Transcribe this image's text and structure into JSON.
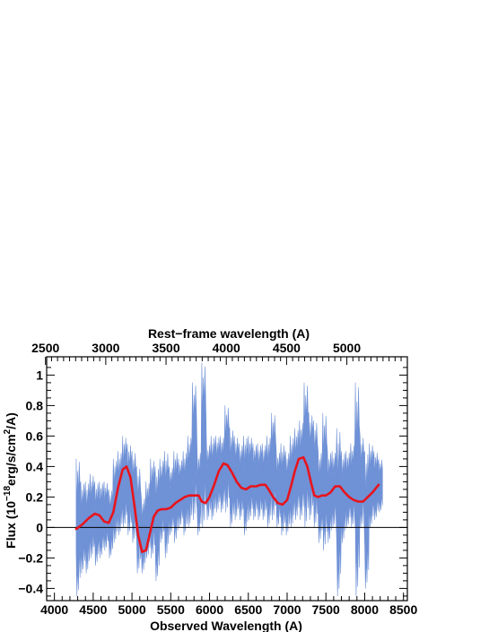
{
  "chart_data": {
    "type": "line",
    "title": "",
    "xlabel": "Observed Wavelength (A)",
    "ylabel_prefix": "Flux (10",
    "ylabel_exp1": "−18",
    "ylabel_mid": "erg/s/cm",
    "ylabel_exp2": "2",
    "ylabel_suffix": "/A)",
    "top_xlabel": "Rest−frame wavelength (A)",
    "xlim": [
      3900,
      8550
    ],
    "ylim": [
      -0.48,
      1.12
    ],
    "x_ticks": [
      4000,
      4500,
      5000,
      5500,
      6000,
      6500,
      7000,
      7500,
      8000,
      8500
    ],
    "y_ticks": [
      -0.4,
      -0.2,
      0,
      0.2,
      0.4,
      0.6,
      0.8,
      1
    ],
    "y_tick_labels": [
      "−0.4",
      "−0.2",
      "0",
      "0.2",
      "0.4",
      "0.6",
      "0.8",
      "1"
    ],
    "top_ticks": {
      "observed_per_rest": 1.554,
      "values": [
        2500,
        3000,
        3500,
        4000,
        4500,
        5000
      ]
    },
    "zero_line": 0,
    "grid": false,
    "colors": {
      "spectrum_band": "#6f91d6",
      "smoothed": "#e8141c",
      "axes": "#000000"
    },
    "series": [
      {
        "role": "spectrum_band",
        "x": [
          4280,
          4340,
          4400,
          4460,
          4520,
          4580,
          4640,
          4700,
          4760,
          4820,
          4880,
          4940,
          5000,
          5060,
          5120,
          5180,
          5240,
          5300,
          5360,
          5420,
          5480,
          5540,
          5600,
          5660,
          5720,
          5780,
          5840,
          5900,
          5960,
          6020,
          6080,
          6140,
          6200,
          6260,
          6320,
          6380,
          6440,
          6500,
          6560,
          6620,
          6680,
          6740,
          6800,
          6860,
          6920,
          6980,
          7040,
          7100,
          7160,
          7220,
          7280,
          7340,
          7400,
          7460,
          7520,
          7580,
          7640,
          7700,
          7760,
          7820,
          7880,
          7940,
          8000,
          8060,
          8120,
          8180
        ],
        "low": [
          -0.45,
          -0.3,
          -0.3,
          -0.2,
          -0.25,
          -0.2,
          -0.15,
          -0.2,
          -0.1,
          -0.05,
          0.0,
          -0.05,
          -0.1,
          -0.3,
          -0.3,
          -0.2,
          -0.2,
          -0.35,
          -0.1,
          -0.2,
          -0.05,
          -0.1,
          0.0,
          -0.05,
          0.0,
          0.05,
          -0.05,
          0.0,
          0.05,
          0.05,
          0.1,
          0.1,
          0.1,
          0.0,
          0.05,
          0.05,
          -0.05,
          0.05,
          0.05,
          0.05,
          0.05,
          0.0,
          0.05,
          0.0,
          -0.05,
          -0.05,
          0.0,
          0.05,
          0.05,
          0.0,
          0.05,
          0.0,
          -0.1,
          -0.15,
          -0.1,
          0.0,
          -0.45,
          -0.1,
          0.0,
          0.0,
          -0.45,
          0.0,
          -0.4,
          0.0,
          0.05,
          0.1
        ],
        "high": [
          0.45,
          0.3,
          0.3,
          0.35,
          0.3,
          0.3,
          0.3,
          0.25,
          0.45,
          0.5,
          0.6,
          0.55,
          0.5,
          0.4,
          0.2,
          0.3,
          0.45,
          0.4,
          0.45,
          0.5,
          0.4,
          0.5,
          0.45,
          0.5,
          0.6,
          0.95,
          0.5,
          1.08,
          0.55,
          0.6,
          0.6,
          0.6,
          0.8,
          0.65,
          0.6,
          0.55,
          0.6,
          0.6,
          0.55,
          0.55,
          0.55,
          0.6,
          0.75,
          0.5,
          0.55,
          0.5,
          0.6,
          0.65,
          0.7,
          0.95,
          0.75,
          0.7,
          0.5,
          0.75,
          0.5,
          0.5,
          0.65,
          0.5,
          0.5,
          0.55,
          0.95,
          0.6,
          0.5,
          0.55,
          0.5,
          0.45
        ]
      },
      {
        "role": "smoothed",
        "x": [
          4280,
          4360,
          4440,
          4520,
          4580,
          4640,
          4700,
          4760,
          4820,
          4880,
          4930,
          4980,
          5030,
          5080,
          5130,
          5180,
          5230,
          5280,
          5330,
          5380,
          5440,
          5500,
          5560,
          5620,
          5680,
          5740,
          5800,
          5860,
          5900,
          5950,
          6000,
          6060,
          6120,
          6180,
          6230,
          6290,
          6350,
          6410,
          6470,
          6530,
          6600,
          6660,
          6720,
          6760,
          6820,
          6880,
          6940,
          7000,
          7050,
          7100,
          7150,
          7210,
          7260,
          7310,
          7350,
          7400,
          7450,
          7500,
          7560,
          7620,
          7680,
          7740,
          7800,
          7860,
          7920,
          7980,
          8040,
          8100,
          8180
        ],
        "y": [
          -0.01,
          0.02,
          0.06,
          0.09,
          0.08,
          0.04,
          0.03,
          0.1,
          0.26,
          0.38,
          0.4,
          0.33,
          0.15,
          -0.05,
          -0.16,
          -0.15,
          -0.04,
          0.07,
          0.11,
          0.12,
          0.12,
          0.13,
          0.16,
          0.18,
          0.2,
          0.21,
          0.21,
          0.21,
          0.17,
          0.16,
          0.2,
          0.28,
          0.37,
          0.42,
          0.41,
          0.36,
          0.3,
          0.26,
          0.25,
          0.27,
          0.27,
          0.28,
          0.28,
          0.25,
          0.2,
          0.16,
          0.15,
          0.18,
          0.27,
          0.37,
          0.45,
          0.46,
          0.4,
          0.29,
          0.21,
          0.2,
          0.21,
          0.21,
          0.23,
          0.27,
          0.27,
          0.23,
          0.2,
          0.18,
          0.17,
          0.17,
          0.2,
          0.23,
          0.28
        ]
      }
    ]
  }
}
